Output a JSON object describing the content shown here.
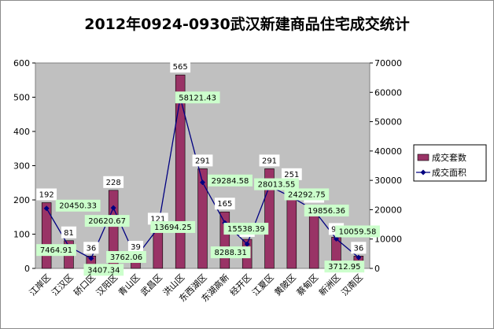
{
  "chart_data": {
    "type": "bar",
    "title": "2012年0924-0930武汉新建商品住宅成交统计",
    "categories": [
      "江岸区",
      "江汉区",
      "硚口区",
      "汉阳区",
      "青山区",
      "武昌区",
      "洪山区",
      "东西湖区",
      "东湖高新",
      "经开区",
      "江夏区",
      "黄陂区",
      "蔡甸区",
      "新洲区",
      "汉南区"
    ],
    "series": [
      {
        "name": "成交套数",
        "type": "bar",
        "axis": "left",
        "values": [
          192,
          81,
          36,
          228,
          39,
          121,
          565,
          291,
          165,
          85,
          291,
          251,
          185,
          91,
          36
        ]
      },
      {
        "name": "成交面积",
        "type": "line",
        "axis": "right",
        "values": [
          20450.33,
          7464.91,
          3407.34,
          20620.67,
          3762.06,
          13694.25,
          58121.43,
          29284.58,
          15538.39,
          8288.31,
          28013.55,
          24292.75,
          19856.36,
          10059.58,
          3712.95
        ]
      }
    ],
    "ylim_left": [
      0,
      600
    ],
    "yticks_left": [
      0,
      100,
      200,
      300,
      400,
      500,
      600
    ],
    "ylim_right": [
      0,
      70000
    ],
    "yticks_right": [
      0,
      10000,
      20000,
      30000,
      40000,
      50000,
      60000,
      70000
    ],
    "grid": false,
    "legend_position": "right",
    "colors": {
      "plot_background": "#c0c0c0",
      "bar_fill": "#993366",
      "line": "#000080",
      "area_label_bg": "#ccffcc"
    }
  }
}
